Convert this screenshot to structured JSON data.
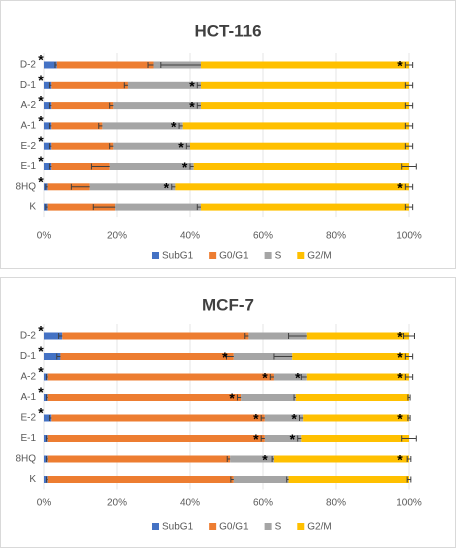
{
  "chart_data": [
    {
      "type": "stacked-bar-horizontal",
      "title": "HCT-116",
      "categories": [
        "D-2",
        "D-1",
        "A-2",
        "A-1",
        "E-2",
        "E-1",
        "8HQ",
        "K"
      ],
      "series": [
        {
          "name": "SubG1",
          "color": "#4472c4",
          "values": [
            3.5,
            2,
            2,
            2,
            2,
            2,
            1,
            1
          ],
          "errors": [
            0.5,
            0.5,
            0.5,
            0.5,
            0.5,
            0.5,
            0.5,
            0.5
          ],
          "significant": [
            true,
            true,
            true,
            true,
            true,
            true,
            true,
            false
          ]
        },
        {
          "name": "G0/G1",
          "color": "#ed7d31",
          "values": [
            26.5,
            21,
            17,
            14,
            17,
            16,
            11.5,
            18.5
          ],
          "errors": [
            1.5,
            1,
            1,
            1,
            1,
            5,
            5,
            6
          ],
          "significant": [
            false,
            false,
            false,
            false,
            false,
            false,
            false,
            false
          ]
        },
        {
          "name": "S",
          "color": "#a5a5a5",
          "values": [
            13,
            20,
            24,
            22,
            21,
            23,
            23.5,
            23.5
          ],
          "errors": [
            11,
            1,
            1,
            1,
            1,
            1,
            1,
            1
          ],
          "significant": [
            false,
            true,
            true,
            true,
            true,
            true,
            true,
            false
          ]
        },
        {
          "name": "G2/M",
          "color": "#ffc000",
          "values": [
            57,
            57,
            57,
            62,
            60,
            59,
            64,
            57
          ],
          "errors": [
            1,
            1,
            1,
            1,
            1,
            2,
            1,
            1
          ],
          "significant": [
            true,
            false,
            false,
            false,
            false,
            false,
            true,
            false
          ]
        }
      ],
      "significance_mark": "*",
      "xlim": [
        0,
        100
      ],
      "xticks": [
        {
          "value": 0,
          "label": "0%"
        },
        {
          "value": 20,
          "label": "20%"
        },
        {
          "value": 40,
          "label": "40%"
        },
        {
          "value": 60,
          "label": "60%"
        },
        {
          "value": 80,
          "label": "80%"
        },
        {
          "value": 100,
          "label": "100%"
        }
      ],
      "grid": true,
      "legend": "bottom"
    },
    {
      "type": "stacked-bar-horizontal",
      "title": "MCF-7",
      "categories": [
        "D-2",
        "D-1",
        "A-2",
        "A-1",
        "E-2",
        "E-1",
        "8HQ",
        "K"
      ],
      "series": [
        {
          "name": "SubG1",
          "color": "#4472c4",
          "values": [
            5,
            4.5,
            1,
            1,
            2,
            1,
            1,
            1
          ],
          "errors": [
            1,
            1,
            0.3,
            0.3,
            0.5,
            0.3,
            0.3,
            0.3
          ],
          "significant": [
            true,
            true,
            true,
            true,
            true,
            false,
            false,
            false
          ]
        },
        {
          "name": "G0/G1",
          "color": "#ed7d31",
          "values": [
            51,
            47.5,
            62,
            53,
            58.5,
            59.5,
            50,
            51
          ],
          "errors": [
            1,
            2,
            1,
            1,
            1,
            1,
            0.8,
            0.8
          ],
          "significant": [
            false,
            true,
            true,
            true,
            true,
            true,
            false,
            false
          ]
        },
        {
          "name": "S",
          "color": "#a5a5a5",
          "values": [
            16,
            16,
            9,
            15,
            10.5,
            10,
            12,
            15
          ],
          "errors": [
            5,
            5,
            1.5,
            0.5,
            1,
            1,
            0.5,
            0.5
          ],
          "significant": [
            false,
            false,
            true,
            false,
            true,
            true,
            true,
            false
          ]
        },
        {
          "name": "G2/M",
          "color": "#ffc000",
          "values": [
            28,
            32,
            28,
            31,
            29,
            29.5,
            37,
            33
          ],
          "errors": [
            1.5,
            1,
            1,
            0.3,
            0.3,
            2,
            0.5,
            0.5
          ],
          "significant": [
            true,
            true,
            true,
            false,
            true,
            false,
            true,
            false
          ]
        }
      ],
      "significance_mark": "*",
      "xlim": [
        0,
        100
      ],
      "xticks": [
        {
          "value": 0,
          "label": "0%"
        },
        {
          "value": 20,
          "label": "20%"
        },
        {
          "value": 40,
          "label": "40%"
        },
        {
          "value": 60,
          "label": "60%"
        },
        {
          "value": 80,
          "label": "80%"
        },
        {
          "value": 100,
          "label": "100%"
        }
      ],
      "grid": true,
      "legend": "bottom"
    }
  ]
}
